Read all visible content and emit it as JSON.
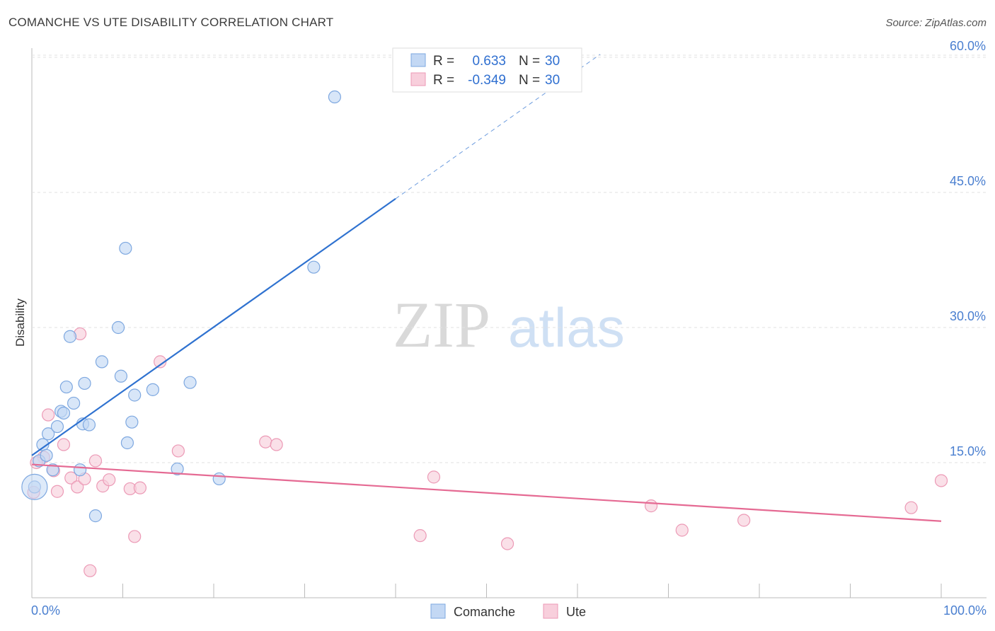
{
  "header": {
    "title": "COMANCHE VS UTE DISABILITY CORRELATION CHART",
    "source": "Source: ZipAtlas.com"
  },
  "watermark": {
    "part1": "ZIP",
    "part2": "atlas"
  },
  "legend_top": {
    "rows": [
      {
        "r_label": "R =",
        "r_value": "0.633",
        "n_label": "N =",
        "n_value": "30",
        "color": "#a9c8f2"
      },
      {
        "r_label": "R =",
        "r_value": "-0.349",
        "n_label": "N =",
        "n_value": "30",
        "color": "#f5b4c8"
      }
    ]
  },
  "colors": {
    "comanche_fill": "#c3d8f4",
    "comanche_stroke": "#7ea8e0",
    "comanche_line": "#2f72d0",
    "ute_fill": "#f8cfdc",
    "ute_stroke": "#ec9ab6",
    "ute_line": "#e56a93",
    "accent_text": "#2f6fd0",
    "grid": "#e2e2e2"
  },
  "chart_data": {
    "type": "scatter",
    "title": "COMANCHE VS UTE DISABILITY CORRELATION CHART",
    "xlabel": "",
    "ylabel": "Disability",
    "xlim": [
      0,
      100
    ],
    "ylim": [
      0,
      63
    ],
    "x_tick_labels": [
      "0.0%",
      "100.0%"
    ],
    "y_ticks": [
      15,
      30,
      45,
      60
    ],
    "y_tick_labels": [
      "15.0%",
      "30.0%",
      "45.0%",
      "60.0%"
    ],
    "grid": true,
    "legend": "bottom-center",
    "series": [
      {
        "name": "Comanche",
        "r": 0.633,
        "n": 30,
        "trend": {
          "x0": 0,
          "y0": 15.8,
          "x1": 40,
          "y1": 44.3,
          "dashed_to_x": 62.5
        },
        "points": [
          [
            0.3,
            12.3
          ],
          [
            0.8,
            15.2
          ],
          [
            1.2,
            17.0
          ],
          [
            1.6,
            15.8
          ],
          [
            1.8,
            18.2
          ],
          [
            2.3,
            14.2
          ],
          [
            2.8,
            19.0
          ],
          [
            3.2,
            20.7
          ],
          [
            3.5,
            20.5
          ],
          [
            3.8,
            23.4
          ],
          [
            4.2,
            29.0
          ],
          [
            4.6,
            21.6
          ],
          [
            5.3,
            14.2
          ],
          [
            5.6,
            19.3
          ],
          [
            5.8,
            23.8
          ],
          [
            6.3,
            19.2
          ],
          [
            7.0,
            9.1
          ],
          [
            7.7,
            26.2
          ],
          [
            9.5,
            30.0
          ],
          [
            9.8,
            24.6
          ],
          [
            10.3,
            38.8
          ],
          [
            10.5,
            17.2
          ],
          [
            11.0,
            19.5
          ],
          [
            11.3,
            22.5
          ],
          [
            13.3,
            23.1
          ],
          [
            16.0,
            14.3
          ],
          [
            17.4,
            23.9
          ],
          [
            20.6,
            13.2
          ],
          [
            31.0,
            36.7
          ],
          [
            33.3,
            55.6
          ]
        ]
      },
      {
        "name": "Ute",
        "r": -0.349,
        "n": 30,
        "trend": {
          "x0": 0,
          "y0": 14.8,
          "x1": 100,
          "y1": 8.5
        },
        "points": [
          [
            0.2,
            11.7
          ],
          [
            1.3,
            15.6
          ],
          [
            1.8,
            20.3
          ],
          [
            2.4,
            14.1
          ],
          [
            2.8,
            11.8
          ],
          [
            3.5,
            17.0
          ],
          [
            4.3,
            13.3
          ],
          [
            5.0,
            12.3
          ],
          [
            5.3,
            29.3
          ],
          [
            5.8,
            13.2
          ],
          [
            6.4,
            3.0
          ],
          [
            7.0,
            15.2
          ],
          [
            7.8,
            12.4
          ],
          [
            8.5,
            13.1
          ],
          [
            10.8,
            12.1
          ],
          [
            11.3,
            6.8
          ],
          [
            11.9,
            12.2
          ],
          [
            14.1,
            26.2
          ],
          [
            16.1,
            16.3
          ],
          [
            25.7,
            17.3
          ],
          [
            26.9,
            17.0
          ],
          [
            42.7,
            6.9
          ],
          [
            44.2,
            13.4
          ],
          [
            52.3,
            6.0
          ],
          [
            68.1,
            10.2
          ],
          [
            71.5,
            7.5
          ],
          [
            78.3,
            8.6
          ],
          [
            96.7,
            10.0
          ],
          [
            100.0,
            13.0
          ],
          [
            0.5,
            15.0
          ]
        ]
      }
    ]
  }
}
